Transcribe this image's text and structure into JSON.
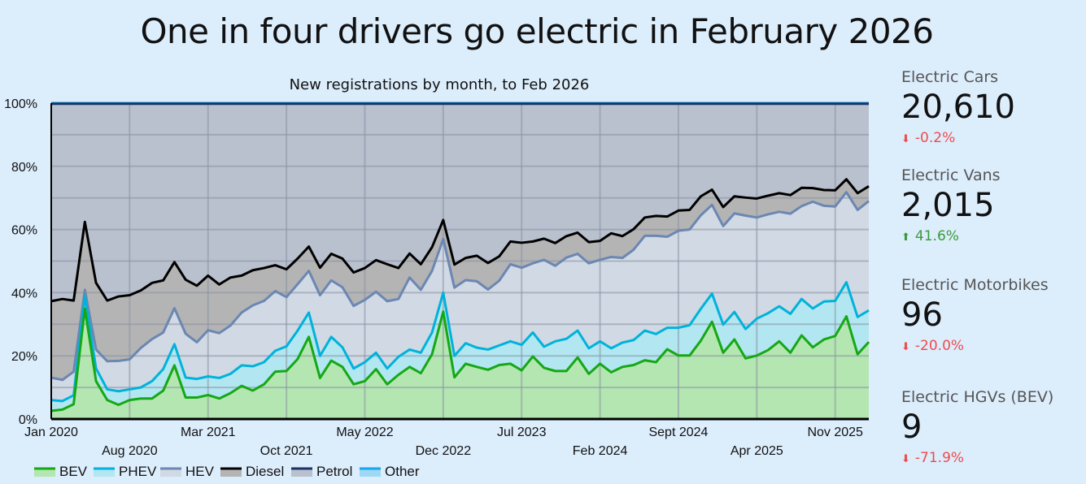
{
  "title": "One in four drivers go electric in February 2026",
  "chart_data": {
    "type": "area",
    "stacked": true,
    "values_are_cumulative_percent": true,
    "title": "New registrations by month, to  Feb 2026",
    "xlabel": "",
    "ylabel": "",
    "x_start": "Jan 2020",
    "x_end": "Feb 2026",
    "ylim": [
      0,
      100
    ],
    "yticks": [
      "0%",
      "20%",
      "40%",
      "60%",
      "80%",
      "100%"
    ],
    "xticks_top": [
      "Jan 2020",
      "Mar 2021",
      "May 2022",
      "Jul 2023",
      "Sept 2024",
      "Nov 2025"
    ],
    "xticks_bottom": [
      "Aug 2020",
      "Oct 2021",
      "Dec 2022",
      "Feb 2024",
      "Apr 2025"
    ],
    "grid": true,
    "legend_position": "bottom",
    "series": [
      {
        "name": "BEV",
        "line": "#15a815",
        "fill": "#b4e6b1",
        "values": [
          2.6,
          3,
          4.7,
          35,
          12,
          6,
          4.5,
          6,
          6.5,
          6.5,
          9,
          17,
          6.8,
          6.8,
          7.6,
          6.5,
          8.2,
          10.5,
          9,
          11,
          15,
          15.2,
          19,
          26,
          13,
          18.5,
          16.5,
          11,
          12,
          15.8,
          11,
          14,
          16.5,
          14.5,
          20.5,
          34,
          13.2,
          17.5,
          16.5,
          15.6,
          17.1,
          17.5,
          15.4,
          19.8,
          16.2,
          15.2,
          15.2,
          19.5,
          14.3,
          17.5,
          14.8,
          16.5,
          17.1,
          18.6,
          18,
          22.1,
          20.1,
          20.1,
          24.8,
          30.8,
          21,
          25.2,
          19.2,
          20.1,
          21.8,
          24.6,
          21,
          26.5,
          22.7,
          25.2,
          26.3,
          32.5,
          20.5,
          24.4
        ]
      },
      {
        "name": "PHEV",
        "line": "#00b2db",
        "fill": "#b2e6f1",
        "values": [
          6,
          5.7,
          7.5,
          39,
          16,
          9.4,
          8.8,
          9.4,
          10,
          12,
          15.8,
          23.7,
          13.1,
          12.7,
          13.5,
          13,
          14.3,
          17,
          16.7,
          18,
          21.6,
          23,
          28,
          33.7,
          20,
          26,
          22.7,
          16,
          18,
          21,
          16,
          19.7,
          22,
          21,
          27.4,
          40,
          20,
          24,
          22.6,
          22,
          23.3,
          24.6,
          23.5,
          27.4,
          22.9,
          24.6,
          25.4,
          28,
          22.4,
          24.6,
          22.4,
          24.2,
          25,
          28,
          26.9,
          28.9,
          28.9,
          29.7,
          34.9,
          39.7,
          29.9,
          33.9,
          28.5,
          31.8,
          33.5,
          35.7,
          33.3,
          38,
          35,
          37.2,
          37.4,
          43.3,
          32.3,
          34.4
        ]
      },
      {
        "name": "HEV",
        "line": "#6b87b2",
        "fill": "#d1d9e4",
        "values": [
          13.1,
          12.4,
          15,
          40.9,
          22,
          18.3,
          18.4,
          18.9,
          22.5,
          25.3,
          27.4,
          35.1,
          27,
          24.3,
          28.1,
          27.2,
          29.6,
          33.7,
          36,
          37.4,
          40.5,
          38.6,
          42.7,
          46.9,
          39.2,
          43.9,
          41.7,
          35.8,
          37.7,
          40.3,
          37.3,
          38,
          44.8,
          40.9,
          46.9,
          57,
          41.6,
          44,
          43.6,
          41,
          43.8,
          49,
          47.9,
          49.3,
          50.4,
          48.5,
          51.1,
          52.3,
          49.3,
          50.4,
          51.3,
          51,
          53.6,
          58,
          58,
          57.7,
          59.6,
          60,
          64.5,
          67.8,
          61.1,
          65.1,
          64.4,
          63.8,
          64.8,
          65.6,
          65,
          67.4,
          68.8,
          67.5,
          67.3,
          71.8,
          66.2,
          69
        ]
      },
      {
        "name": "Diesel",
        "line": "#000000",
        "fill": "#b4b4b4",
        "values": [
          37.3,
          38,
          37.5,
          62.4,
          43.1,
          37.5,
          38.8,
          39.2,
          40.7,
          43.1,
          43.9,
          49.7,
          44.1,
          42.2,
          45.4,
          42.6,
          44.8,
          45.4,
          47.1,
          47.8,
          48.7,
          47.4,
          50.8,
          54.6,
          47.9,
          52.3,
          50.8,
          46.4,
          47.8,
          50.3,
          49,
          47.8,
          52.4,
          49,
          54.4,
          63,
          48.9,
          51,
          51.7,
          49.4,
          51.5,
          56.2,
          55.8,
          56.2,
          57.1,
          55.7,
          57.9,
          59,
          56,
          56.4,
          58.8,
          57.9,
          60.1,
          63.8,
          64.3,
          64.1,
          66,
          66.2,
          70.5,
          72.6,
          67.1,
          70.5,
          70.1,
          69.8,
          70.7,
          71.5,
          70.9,
          73.2,
          73.1,
          72.5,
          72.4,
          75.9,
          71.5,
          73.7
        ]
      },
      {
        "name": "Petrol",
        "line": "#1a3362",
        "fill": "#b9c1cf",
        "values": "99.8 each month"
      },
      {
        "name": "Other",
        "line": "#13a6ef",
        "fill": "#9ed8f5",
        "values": "100 each month"
      }
    ]
  },
  "panel": [
    {
      "label": "Electric Cars",
      "value": "20,610",
      "change": "-0.2%",
      "direction": "down"
    },
    {
      "label": "Electric Vans",
      "value": "2,015",
      "change": "41.6%",
      "direction": "up"
    },
    {
      "label": "Electric Motorbikes",
      "value": "96",
      "change": "-20.0%",
      "direction": "down"
    },
    {
      "label": "Electric HGVs (BEV)",
      "value": "9",
      "change": "-71.9%",
      "direction": "down"
    }
  ],
  "colors": {
    "background": "#dcedfc",
    "down": "#f04b4b",
    "up": "#3a9a3a"
  }
}
